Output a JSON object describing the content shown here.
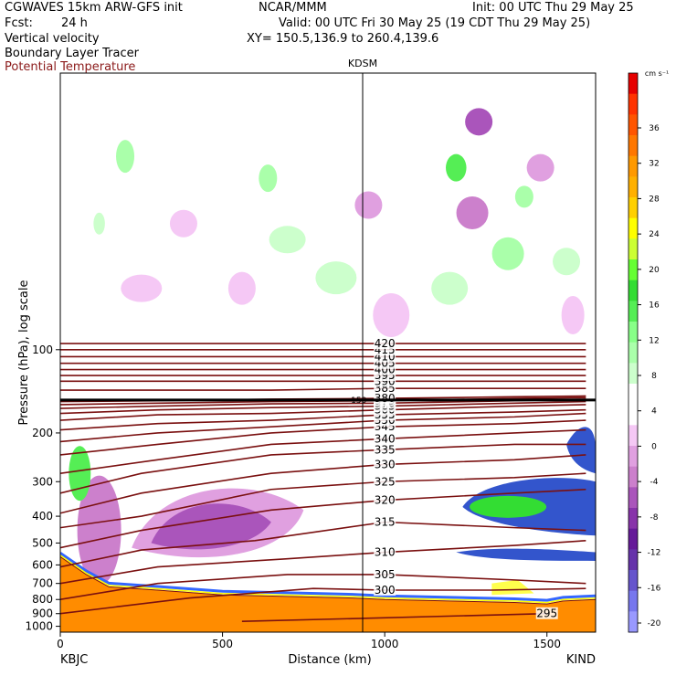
{
  "header": {
    "title_left": "CGWAVES 15km ARW-GFS init",
    "center": "NCAR/MMM",
    "init": "Init: 00 UTC Thu 29 May 25",
    "fcst_label": "Fcst:",
    "fcst_value": "24 h",
    "valid": "Valid: 00 UTC Fri 30 May 25 (19 CDT Thu 29 May 25)",
    "field1": "Vertical velocity",
    "field2": "Boundary Layer Tracer",
    "field3": "Potential Temperature",
    "xy": "XY= 150.5,136.9 to 260.4,139.6"
  },
  "colors": {
    "theta": "#7a1010",
    "terrain": "#ff8c00"
  },
  "chart_data": {
    "type": "heatmap",
    "station_marker": "KDSM",
    "x_endpoints": {
      "left": "KBJC",
      "right": "KIND"
    },
    "xlabel": "Distance (km)",
    "ylabel": "Pressure (hPa), log scale",
    "xlim": [
      0,
      1650
    ],
    "ylim": [
      1050,
      10
    ],
    "y_scale": "log",
    "x_ticks": [
      "0",
      "500",
      "1000",
      "1500"
    ],
    "y_ticks": [
      "100",
      "200",
      "300",
      "400",
      "500",
      "600",
      "700",
      "800",
      "900",
      "1000"
    ],
    "colorbar": {
      "unit": "cm s⁻¹",
      "ticks": [
        "36",
        "32",
        "28",
        "24",
        "20",
        "16",
        "12",
        "8",
        "4",
        "0",
        "-4",
        "-8",
        "-12",
        "-16",
        "-20"
      ],
      "colors": [
        "#e60000",
        "#ff3300",
        "#ff5500",
        "#ff7700",
        "#ff9900",
        "#ffb000",
        "#ffd000",
        "#ffff00",
        "#ccff33",
        "#66ff33",
        "#33dd33",
        "#55ee55",
        "#88ff88",
        "#aaffaa",
        "#ccffcc",
        "#ffffff",
        "#ffffff",
        "#f5c8f5",
        "#e0a0e0",
        "#cc80cc",
        "#aa55bb",
        "#8833aa",
        "#661a99",
        "#6633aa",
        "#6655cc",
        "#7777ee",
        "#9999ff"
      ]
    },
    "theta_contours": [
      {
        "label": "295",
        "points": [
          [
            560,
            960
          ],
          [
            1500,
            900
          ]
        ]
      },
      {
        "label": "300",
        "points": [
          [
            0,
            900
          ],
          [
            400,
            790
          ],
          [
            780,
            730
          ],
          [
            1000,
            740
          ],
          [
            1330,
            740
          ],
          [
            1620,
            730
          ]
        ]
      },
      {
        "label": "305",
        "points": [
          [
            0,
            800
          ],
          [
            300,
            700
          ],
          [
            700,
            650
          ],
          [
            1000,
            650
          ],
          [
            1400,
            680
          ],
          [
            1620,
            700
          ]
        ]
      },
      {
        "label": "310",
        "points": [
          [
            0,
            700
          ],
          [
            300,
            610
          ],
          [
            700,
            570
          ],
          [
            1000,
            540
          ],
          [
            1400,
            510
          ],
          [
            1620,
            490
          ]
        ]
      },
      {
        "label": "315",
        "points": [
          [
            0,
            610
          ],
          [
            250,
            530
          ],
          [
            600,
            490
          ],
          [
            1000,
            420
          ],
          [
            1400,
            440
          ],
          [
            1620,
            450
          ]
        ]
      },
      {
        "label": "320",
        "points": [
          [
            0,
            520
          ],
          [
            250,
            450
          ],
          [
            650,
            380
          ],
          [
            1000,
            350
          ],
          [
            1400,
            330
          ],
          [
            1620,
            320
          ]
        ]
      },
      {
        "label": "325",
        "points": [
          [
            0,
            440
          ],
          [
            250,
            400
          ],
          [
            650,
            320
          ],
          [
            1000,
            300
          ],
          [
            1400,
            290
          ],
          [
            1620,
            280
          ]
        ]
      },
      {
        "label": "330",
        "points": [
          [
            0,
            390
          ],
          [
            250,
            330
          ],
          [
            650,
            280
          ],
          [
            1000,
            260
          ],
          [
            1400,
            250
          ],
          [
            1620,
            240
          ]
        ]
      },
      {
        "label": "335",
        "points": [
          [
            0,
            330
          ],
          [
            250,
            280
          ],
          [
            650,
            240
          ],
          [
            1000,
            230
          ],
          [
            1400,
            220
          ],
          [
            1620,
            220
          ]
        ]
      },
      {
        "label": "340",
        "points": [
          [
            0,
            280
          ],
          [
            300,
            250
          ],
          [
            650,
            220
          ],
          [
            1000,
            210
          ],
          [
            1400,
            200
          ],
          [
            1620,
            195
          ]
        ]
      },
      {
        "label": "345",
        "points": [
          [
            0,
            240
          ],
          [
            300,
            220
          ],
          [
            650,
            200
          ],
          [
            1000,
            190
          ],
          [
            1400,
            185
          ],
          [
            1620,
            180
          ]
        ]
      },
      {
        "label": "350",
        "points": [
          [
            0,
            215
          ],
          [
            300,
            200
          ],
          [
            650,
            190
          ],
          [
            1000,
            180
          ],
          [
            1400,
            175
          ],
          [
            1620,
            170
          ]
        ]
      },
      {
        "label": "355",
        "points": [
          [
            0,
            195
          ],
          [
            300,
            185
          ],
          [
            650,
            180
          ],
          [
            1000,
            172
          ],
          [
            1400,
            168
          ],
          [
            1620,
            165
          ]
        ]
      },
      {
        "label": "360",
        "points": [
          [
            0,
            180
          ],
          [
            300,
            172
          ],
          [
            650,
            170
          ],
          [
            1000,
            165
          ],
          [
            1400,
            160
          ],
          [
            1620,
            158
          ]
        ]
      },
      {
        "label": "365",
        "points": [
          [
            0,
            170
          ],
          [
            300,
            165
          ],
          [
            650,
            162
          ],
          [
            1000,
            160
          ],
          [
            1400,
            156
          ],
          [
            1620,
            154
          ]
        ]
      },
      {
        "label": "370",
        "points": [
          [
            0,
            163
          ],
          [
            300,
            160
          ],
          [
            650,
            157
          ],
          [
            1000,
            156
          ],
          [
            1400,
            153
          ],
          [
            1620,
            151
          ]
        ]
      },
      {
        "label": "375",
        "points": [
          [
            0,
            158
          ],
          [
            300,
            156
          ],
          [
            650,
            154
          ],
          [
            1000,
            153
          ],
          [
            1400,
            150
          ],
          [
            1620,
            149
          ]
        ]
      },
      {
        "label": "380",
        "points": [
          [
            0,
            154
          ],
          [
            300,
            153
          ],
          [
            650,
            151
          ],
          [
            1000,
            150
          ],
          [
            1400,
            148
          ],
          [
            1620,
            147
          ]
        ]
      },
      {
        "label": "385",
        "points": [
          [
            0,
            140
          ],
          [
            300,
            140
          ],
          [
            650,
            140
          ],
          [
            1000,
            138
          ],
          [
            1400,
            138
          ],
          [
            1620,
            138
          ]
        ]
      },
      {
        "label": "390",
        "points": [
          [
            0,
            130
          ],
          [
            300,
            130
          ],
          [
            650,
            130
          ],
          [
            1000,
            130
          ],
          [
            1400,
            130
          ],
          [
            1620,
            130
          ]
        ]
      },
      {
        "label": "395",
        "points": [
          [
            0,
            124
          ],
          [
            300,
            124
          ],
          [
            650,
            124
          ],
          [
            1000,
            124
          ],
          [
            1400,
            124
          ],
          [
            1620,
            124
          ]
        ]
      },
      {
        "label": "400",
        "points": [
          [
            0,
            118
          ],
          [
            300,
            118
          ],
          [
            650,
            118
          ],
          [
            1000,
            118
          ],
          [
            1400,
            118
          ],
          [
            1620,
            118
          ]
        ]
      },
      {
        "label": "405",
        "points": [
          [
            0,
            112
          ],
          [
            300,
            112
          ],
          [
            650,
            112
          ],
          [
            1000,
            112
          ],
          [
            1400,
            112
          ],
          [
            1620,
            112
          ]
        ]
      },
      {
        "label": "410",
        "points": [
          [
            0,
            106
          ],
          [
            300,
            106
          ],
          [
            650,
            106
          ],
          [
            1000,
            106
          ],
          [
            1400,
            106
          ],
          [
            1620,
            106
          ]
        ]
      },
      {
        "label": "415",
        "points": [
          [
            0,
            100
          ],
          [
            300,
            100
          ],
          [
            650,
            100
          ],
          [
            1000,
            100
          ],
          [
            1400,
            100
          ],
          [
            1620,
            100
          ]
        ]
      },
      {
        "label": "420",
        "points": [
          [
            0,
            95
          ],
          [
            300,
            95
          ],
          [
            650,
            95
          ],
          [
            1000,
            95
          ],
          [
            1400,
            95
          ],
          [
            1620,
            95
          ]
        ]
      }
    ],
    "tropopause_label": "150"
  }
}
